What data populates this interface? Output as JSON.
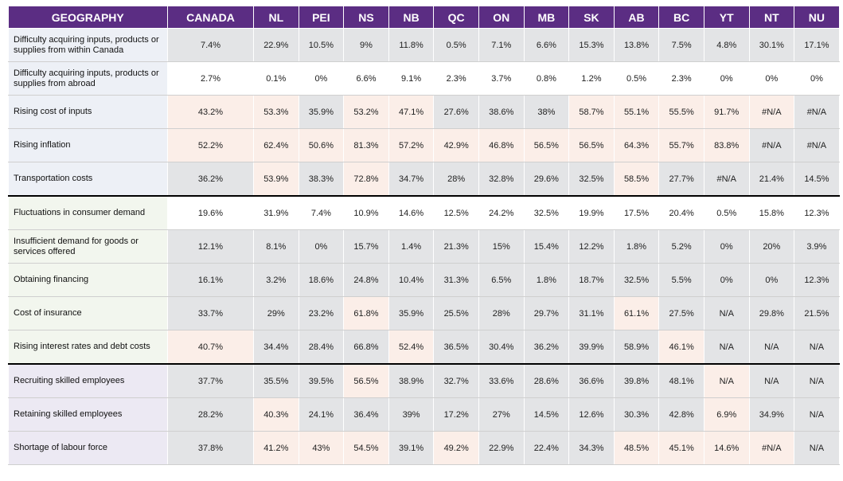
{
  "headers": [
    "GEOGRAPHY",
    "CANADA",
    "NL",
    "PEI",
    "NS",
    "NB",
    "QC",
    "ON",
    "MB",
    "SK",
    "AB",
    "BC",
    "YT",
    "NT",
    "NU"
  ],
  "rows": [
    {
      "label": "Difficulty acquiring inputs, products or supplies from within Canada",
      "values": [
        "7.4%",
        "22.9%",
        "10.5%",
        "9%",
        "11.8%",
        "0.5%",
        "7.1%",
        "6.6%",
        "15.3%",
        "13.8%",
        "7.5%",
        "4.8%",
        "30.1%",
        "17.1%"
      ]
    },
    {
      "label": "Difficulty acquiring inputs, products or supplies from abroad",
      "values": [
        "2.7%",
        "0.1%",
        "0%",
        "6.6%",
        "9.1%",
        "2.3%",
        "3.7%",
        "0.8%",
        "1.2%",
        "0.5%",
        "2.3%",
        "0%",
        "0%",
        "0%"
      ]
    },
    {
      "label": "Rising cost of inputs",
      "values": [
        "43.2%",
        "53.3%",
        "35.9%",
        "53.2%",
        "47.1%",
        "27.6%",
        "38.6%",
        "38%",
        "58.7%",
        "55.1%",
        "55.5%",
        "91.7%",
        "#N/A",
        "#N/A"
      ]
    },
    {
      "label": "Rising inflation",
      "values": [
        "52.2%",
        "62.4%",
        "50.6%",
        "81.3%",
        "57.2%",
        "42.9%",
        "46.8%",
        "56.5%",
        "56.5%",
        "64.3%",
        "55.7%",
        "83.8%",
        "#N/A",
        "#N/A"
      ]
    },
    {
      "label": "Transportation costs",
      "values": [
        "36.2%",
        "53.9%",
        "38.3%",
        "72.8%",
        "34.7%",
        "28%",
        "32.8%",
        "29.6%",
        "32.5%",
        "58.5%",
        "27.7%",
        "#N/A",
        "21.4%",
        "14.5%"
      ]
    },
    {
      "label": "Fluctuations in consumer demand",
      "values": [
        "19.6%",
        "31.9%",
        "7.4%",
        "10.9%",
        "14.6%",
        "12.5%",
        "24.2%",
        "32.5%",
        "19.9%",
        "17.5%",
        "20.4%",
        "0.5%",
        "15.8%",
        "12.3%"
      ]
    },
    {
      "label": "Insufficient demand for goods or services offered",
      "values": [
        "12.1%",
        "8.1%",
        "0%",
        "15.7%",
        "1.4%",
        "21.3%",
        "15%",
        "15.4%",
        "12.2%",
        "1.8%",
        "5.2%",
        "0%",
        "20%",
        "3.9%"
      ]
    },
    {
      "label": "Obtaining financing",
      "values": [
        "16.1%",
        "3.2%",
        "18.6%",
        "24.8%",
        "10.4%",
        "31.3%",
        "6.5%",
        "1.8%",
        "18.7%",
        "32.5%",
        "5.5%",
        "0%",
        "0%",
        "12.3%"
      ]
    },
    {
      "label": "Cost of insurance",
      "values": [
        "33.7%",
        "29%",
        "23.2%",
        "61.8%",
        "35.9%",
        "25.5%",
        "28%",
        "29.7%",
        "31.1%",
        "61.1%",
        "27.5%",
        "N/A",
        "29.8%",
        "21.5%"
      ]
    },
    {
      "label": "Rising interest rates and debt costs",
      "values": [
        "40.7%",
        "34.4%",
        "28.4%",
        "66.8%",
        "52.4%",
        "36.5%",
        "30.4%",
        "36.2%",
        "39.9%",
        "58.9%",
        "46.1%",
        "N/A",
        "N/A",
        "N/A"
      ]
    },
    {
      "label": "Recruiting skilled employees",
      "values": [
        "37.7%",
        "35.5%",
        "39.5%",
        "56.5%",
        "38.9%",
        "32.7%",
        "33.6%",
        "28.6%",
        "36.6%",
        "39.8%",
        "48.1%",
        "N/A",
        "N/A",
        "N/A"
      ]
    },
    {
      "label": "Retaining skilled employees",
      "values": [
        "28.2%",
        "40.3%",
        "24.1%",
        "36.4%",
        "39%",
        "17.2%",
        "27%",
        "14.5%",
        "12.6%",
        "30.3%",
        "42.8%",
        "6.9%",
        "34.9%",
        "N/A"
      ]
    },
    {
      "label": "Shortage of labour force",
      "values": [
        "37.8%",
        "41.2%",
        "43%",
        "54.5%",
        "39.1%",
        "49.2%",
        "22.9%",
        "22.4%",
        "34.3%",
        "48.5%",
        "45.1%",
        "14.6%",
        "#N/A",
        "N/A"
      ]
    }
  ],
  "colors": {
    "header_bg": "#5b2d83",
    "header_text": "#ffffff",
    "gray_cell": "#e3e4e6",
    "peach_cell": "#fbeee8"
  }
}
